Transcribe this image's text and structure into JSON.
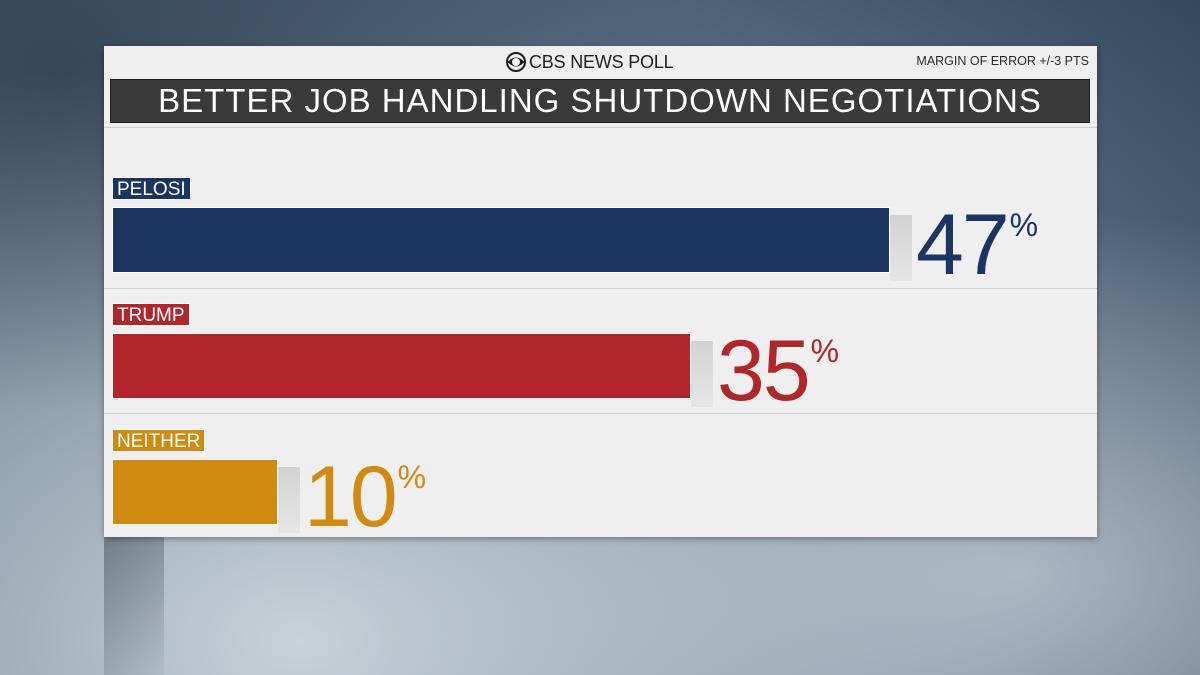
{
  "header": {
    "brand": "CBS NEWS POLL",
    "margin_of_error": "MARGIN OF ERROR +/-3 PTS",
    "title": "BETTER JOB HANDLING SHUTDOWN NEGOTIATIONS"
  },
  "colors": {
    "pelosi": "#1b3560",
    "trump": "#b2252a",
    "neither": "#d08a0f"
  },
  "chart_data": {
    "type": "bar",
    "orientation": "horizontal",
    "title": "BETTER JOB HANDLING SHUTDOWN NEGOTIATIONS",
    "categories": [
      "PELOSI",
      "TRUMP",
      "NEITHER"
    ],
    "values": [
      47,
      35,
      10
    ],
    "value_labels": [
      "47",
      "35",
      "10"
    ],
    "unit": "%",
    "colors": [
      "#1b3560",
      "#b2252a",
      "#d08a0f"
    ],
    "xlim": [
      0,
      100
    ],
    "grid": false,
    "legend": "none"
  }
}
